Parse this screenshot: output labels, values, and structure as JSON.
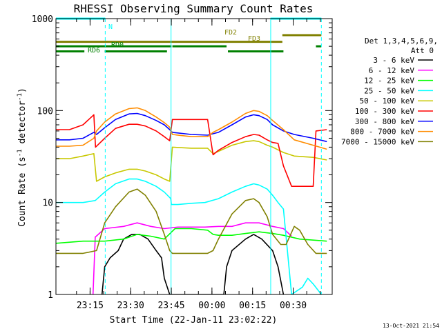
{
  "chart_data": {
    "type": "line",
    "title": "RHESSI Observing Summary Count Rates",
    "ylabel_main": "Count Rate (s",
    "ylabel_sup1": "-1",
    "ylabel_mid": " detector",
    "ylabel_sup2": "-1",
    "ylabel_end": ")",
    "xlabel": "Start Time (22-Jan-11 23:02:22)",
    "footer": "13-Oct-2021 21:54",
    "y_scale": "log",
    "ylim": [
      1,
      1000
    ],
    "xlim_minutes": [
      0,
      102
    ],
    "y_ticks": [
      {
        "value": 1,
        "label": "1"
      },
      {
        "value": 10,
        "label": "10"
      },
      {
        "value": 100,
        "label": "100"
      },
      {
        "value": 1000,
        "label": "1000"
      }
    ],
    "x_ticks": [
      {
        "value": 12.6,
        "label": "23:15"
      },
      {
        "value": 27.6,
        "label": "23:30"
      },
      {
        "value": 42.6,
        "label": "23:45"
      },
      {
        "value": 57.6,
        "label": "00:00"
      },
      {
        "value": 72.6,
        "label": "00:15"
      },
      {
        "value": 87.6,
        "label": "00:30"
      }
    ],
    "legend_header": [
      "Det 1,3,4,5,6,9,",
      "Att 0"
    ],
    "legend_placement": "right",
    "series": [
      {
        "name": "3 - 6 keV",
        "color": "#000000",
        "key": "c3",
        "points": [
          [
            17,
            1
          ],
          [
            18,
            2
          ],
          [
            20,
            2.5
          ],
          [
            23,
            3
          ],
          [
            25,
            4
          ],
          [
            28,
            4.5
          ],
          [
            31,
            4.5
          ],
          [
            34,
            4
          ],
          [
            37,
            3
          ],
          [
            39,
            2.5
          ],
          [
            40,
            1.5
          ],
          [
            42,
            1
          ],
          [
            56,
            1
          ],
          [
            62,
            1
          ],
          [
            63,
            2
          ],
          [
            65,
            3
          ],
          [
            70,
            4
          ],
          [
            73,
            4.5
          ],
          [
            76,
            4
          ],
          [
            80,
            3
          ],
          [
            82,
            2
          ],
          [
            84,
            1
          ]
        ]
      },
      {
        "name": "6 - 12 keV",
        "color": "#ff00ff",
        "key": "c6",
        "points": [
          [
            13.7,
            1
          ],
          [
            14.5,
            4.2
          ],
          [
            18,
            5.2
          ],
          [
            25,
            5.5
          ],
          [
            30,
            6
          ],
          [
            35,
            5.5
          ],
          [
            40,
            5.2
          ],
          [
            45,
            5.4
          ],
          [
            50,
            5.4
          ],
          [
            55,
            5.4
          ],
          [
            60,
            5.5
          ],
          [
            65,
            5.5
          ],
          [
            70,
            6
          ],
          [
            75,
            6
          ],
          [
            80,
            5.5
          ],
          [
            84,
            5.2
          ],
          [
            87,
            4.3
          ]
        ]
      },
      {
        "name": "12 - 25 keV",
        "color": "#00ff00",
        "key": "c12",
        "points": [
          [
            0,
            3.6
          ],
          [
            10,
            3.8
          ],
          [
            18,
            3.8
          ],
          [
            25,
            4
          ],
          [
            30,
            4.5
          ],
          [
            35,
            4.3
          ],
          [
            40,
            4
          ],
          [
            44,
            5.2
          ],
          [
            50,
            5.2
          ],
          [
            56,
            5
          ],
          [
            58,
            4.5
          ],
          [
            60,
            4.4
          ],
          [
            65,
            4.4
          ],
          [
            70,
            4.6
          ],
          [
            75,
            4.8
          ],
          [
            80,
            4.6
          ],
          [
            84,
            4.4
          ],
          [
            90,
            4
          ],
          [
            100,
            3.8
          ]
        ]
      },
      {
        "name": "25 - 50 keV",
        "color": "#00ffff",
        "key": "c25",
        "points": [
          [
            0,
            10
          ],
          [
            5,
            10
          ],
          [
            10,
            10
          ],
          [
            14.5,
            10.5
          ],
          [
            18,
            13
          ],
          [
            22,
            16
          ],
          [
            27,
            18
          ],
          [
            30,
            18
          ],
          [
            33,
            17
          ],
          [
            37,
            15
          ],
          [
            40,
            13
          ],
          [
            42.4,
            11
          ],
          [
            42.6,
            9.5
          ],
          [
            45,
            9.5
          ],
          [
            50,
            9.8
          ],
          [
            55,
            10
          ],
          [
            60,
            11
          ],
          [
            65,
            13
          ],
          [
            70,
            15
          ],
          [
            73,
            16
          ],
          [
            75,
            15.5
          ],
          [
            78,
            14
          ],
          [
            80,
            12
          ],
          [
            82,
            10
          ],
          [
            84,
            8.5
          ],
          [
            87,
            1
          ],
          [
            91,
            1.2
          ],
          [
            93,
            1.5
          ],
          [
            95,
            1.3
          ],
          [
            98,
            1
          ]
        ]
      },
      {
        "name": "50 - 100 keV",
        "color": "#c8c800",
        "key": "c50",
        "points": [
          [
            0,
            30
          ],
          [
            5,
            30
          ],
          [
            10,
            32
          ],
          [
            14,
            34
          ],
          [
            15,
            17
          ],
          [
            18,
            19
          ],
          [
            22,
            21
          ],
          [
            27,
            23
          ],
          [
            30,
            23
          ],
          [
            33,
            22
          ],
          [
            37,
            20
          ],
          [
            40,
            18
          ],
          [
            42,
            17
          ],
          [
            43,
            40
          ],
          [
            50,
            39
          ],
          [
            56,
            39
          ],
          [
            58,
            34
          ],
          [
            60,
            36
          ],
          [
            65,
            42
          ],
          [
            70,
            46
          ],
          [
            73,
            47
          ],
          [
            75,
            46
          ],
          [
            78,
            42
          ],
          [
            80,
            40
          ],
          [
            84,
            35
          ],
          [
            88,
            32
          ],
          [
            95,
            31
          ],
          [
            100,
            29
          ]
        ]
      },
      {
        "name": "100 - 300 keV",
        "color": "#ff0000",
        "key": "c100",
        "points": [
          [
            0,
            62
          ],
          [
            5,
            62
          ],
          [
            10,
            70
          ],
          [
            14,
            90
          ],
          [
            14.6,
            40
          ],
          [
            18,
            50
          ],
          [
            22,
            64
          ],
          [
            27,
            71
          ],
          [
            30,
            71
          ],
          [
            33,
            68
          ],
          [
            37,
            60
          ],
          [
            40,
            52
          ],
          [
            42,
            47
          ],
          [
            43,
            80
          ],
          [
            50,
            80
          ],
          [
            56,
            80
          ],
          [
            58,
            33
          ],
          [
            60,
            37
          ],
          [
            65,
            45
          ],
          [
            70,
            52
          ],
          [
            73,
            55
          ],
          [
            75,
            54
          ],
          [
            78,
            48
          ],
          [
            80,
            45
          ],
          [
            82,
            44
          ],
          [
            84,
            25
          ],
          [
            87,
            15
          ],
          [
            95,
            15
          ],
          [
            96,
            60
          ],
          [
            100,
            62
          ]
        ]
      },
      {
        "name": "300 - 800 keV",
        "color": "#0000ff",
        "key": "c300",
        "points": [
          [
            0,
            48
          ],
          [
            5,
            48
          ],
          [
            10,
            50
          ],
          [
            14,
            58
          ],
          [
            15,
            55
          ],
          [
            18,
            65
          ],
          [
            22,
            80
          ],
          [
            27,
            92
          ],
          [
            30,
            93
          ],
          [
            33,
            88
          ],
          [
            37,
            78
          ],
          [
            40,
            70
          ],
          [
            42,
            62
          ],
          [
            43,
            58
          ],
          [
            50,
            55
          ],
          [
            56,
            54
          ],
          [
            60,
            58
          ],
          [
            65,
            70
          ],
          [
            70,
            85
          ],
          [
            73,
            90
          ],
          [
            75,
            88
          ],
          [
            78,
            80
          ],
          [
            80,
            70
          ],
          [
            84,
            60
          ],
          [
            88,
            55
          ],
          [
            95,
            50
          ],
          [
            100,
            46
          ]
        ]
      },
      {
        "name": "800 - 7000 keV",
        "color": "#ff8c00",
        "key": "c800",
        "points": [
          [
            0,
            41
          ],
          [
            5,
            41
          ],
          [
            10,
            42
          ],
          [
            14,
            50
          ],
          [
            15,
            60
          ],
          [
            18,
            75
          ],
          [
            22,
            92
          ],
          [
            27,
            105
          ],
          [
            30,
            107
          ],
          [
            33,
            100
          ],
          [
            37,
            85
          ],
          [
            40,
            74
          ],
          [
            42,
            66
          ],
          [
            43,
            55
          ],
          [
            50,
            52
          ],
          [
            56,
            52
          ],
          [
            58,
            58
          ],
          [
            60,
            62
          ],
          [
            65,
            75
          ],
          [
            70,
            93
          ],
          [
            73,
            100
          ],
          [
            75,
            98
          ],
          [
            78,
            88
          ],
          [
            80,
            78
          ],
          [
            84,
            62
          ],
          [
            88,
            48
          ],
          [
            95,
            42
          ],
          [
            100,
            38
          ]
        ]
      },
      {
        "name": "7000 - 15000 keV",
        "color": "#808000",
        "key": "c7000",
        "points": [
          [
            0,
            2.8
          ],
          [
            10,
            2.8
          ],
          [
            15,
            3
          ],
          [
            18,
            6
          ],
          [
            22,
            9
          ],
          [
            27,
            13
          ],
          [
            30,
            14
          ],
          [
            33,
            12
          ],
          [
            37,
            8
          ],
          [
            40,
            4.5
          ],
          [
            42,
            3
          ],
          [
            43,
            2.8
          ],
          [
            50,
            2.8
          ],
          [
            56,
            2.8
          ],
          [
            58,
            3
          ],
          [
            60,
            4
          ],
          [
            65,
            7.5
          ],
          [
            70,
            10.5
          ],
          [
            73,
            11
          ],
          [
            75,
            10
          ],
          [
            78,
            7
          ],
          [
            80,
            4.5
          ],
          [
            83,
            3.5
          ],
          [
            85,
            3.5
          ],
          [
            88,
            5.5
          ],
          [
            90,
            5
          ],
          [
            93,
            3.5
          ],
          [
            96,
            2.8
          ],
          [
            100,
            2.8
          ]
        ]
      }
    ],
    "flags": [
      {
        "label": "N",
        "color": "#00ffff",
        "key": "n",
        "value": 1000,
        "segments": [
          [
            0,
            18.2
          ],
          [
            79.2,
            98
          ]
        ]
      },
      {
        "label": "FD2",
        "color": "#808000",
        "key": "fd2",
        "value": 660,
        "segments": [
          [
            83.6,
            98
          ]
        ]
      },
      {
        "label": "FD3",
        "color": "#808000",
        "key": "fd3",
        "value": 560,
        "segments": [
          [
            0,
            83.6
          ]
        ]
      },
      {
        "label": "RD0",
        "color": "#008000",
        "key": "rd0",
        "value": 500,
        "segments": [
          [
            0,
            42.7
          ],
          [
            43,
            63
          ],
          [
            96,
            98
          ]
        ]
      },
      {
        "label": "RD6",
        "color": "#008000",
        "key": "rd6",
        "value": 440,
        "segments": [
          [
            0,
            10.5
          ],
          [
            18,
            41
          ],
          [
            63.5,
            84
          ]
        ]
      }
    ],
    "vlines": [
      {
        "value": 0,
        "style": "solid",
        "color": "#00ffff"
      },
      {
        "value": 18.2,
        "style": "dashed",
        "color": "#00ffff"
      },
      {
        "value": 42.5,
        "style": "solid",
        "color": "#00ffff"
      },
      {
        "value": 79.3,
        "style": "solid",
        "color": "#00ffff"
      },
      {
        "value": 98,
        "style": "dashed",
        "color": "#00ffff"
      }
    ]
  }
}
